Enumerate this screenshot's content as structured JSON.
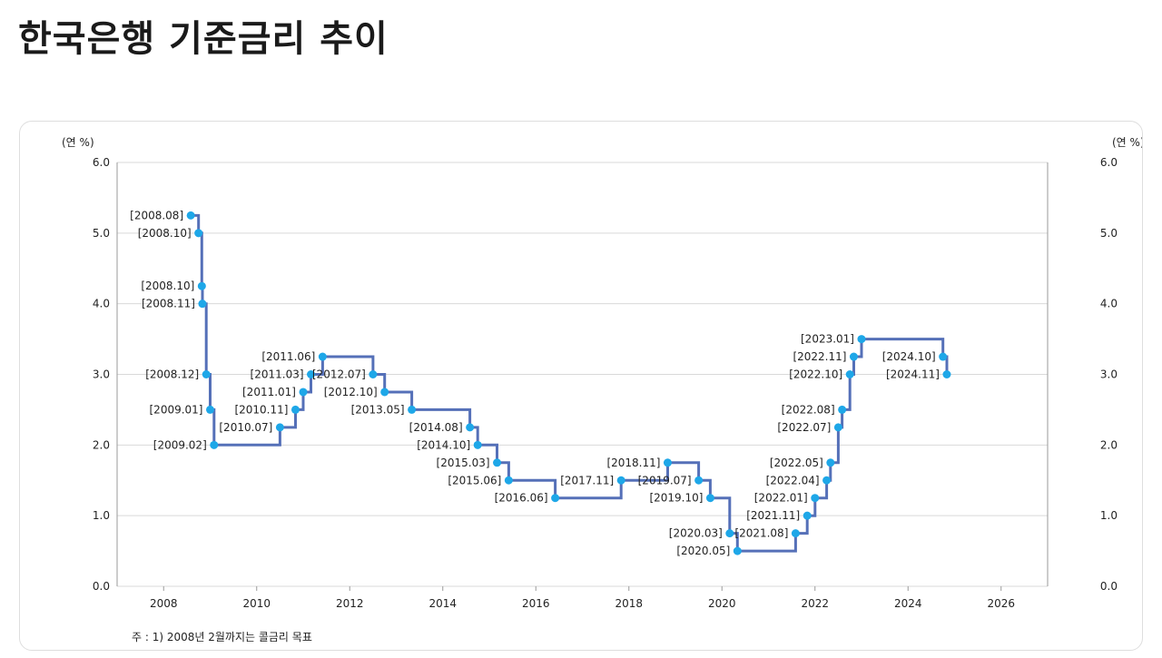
{
  "title": "한국은행 기준금리 추이",
  "footnote": "주 : 1) 2008년 2월까지는 콜금리 목표",
  "colors": {
    "line": "#5570b8",
    "point": "#1ea7e8",
    "grid": "#d9d9d9"
  },
  "chart_data": {
    "type": "line",
    "step": true,
    "unit_left": "(연 %)",
    "unit_right": "(연 %)",
    "xlim": [
      2007,
      2027
    ],
    "ylim": [
      0,
      6
    ],
    "x_ticks": [
      "2008",
      "2010",
      "2012",
      "2014",
      "2016",
      "2018",
      "2020",
      "2022",
      "2024",
      "2026"
    ],
    "y_ticks": [
      "0.0",
      "1.0",
      "2.0",
      "3.0",
      "4.0",
      "5.0",
      "6.0"
    ],
    "grid": true,
    "legend": "none",
    "series": [
      {
        "points": [
          {
            "label": "[2008.08]",
            "x": "2008-08",
            "y": 5.25
          },
          {
            "label": "[2008.10]",
            "x": "2008-10",
            "y": 5.0
          },
          {
            "label": "[2008.10]",
            "x": "2008-10-27",
            "y": 4.25
          },
          {
            "label": "[2008.11]",
            "x": "2008-11",
            "y": 4.0
          },
          {
            "label": "[2008.12]",
            "x": "2008-12",
            "y": 3.0
          },
          {
            "label": "[2009.01]",
            "x": "2009-01",
            "y": 2.5
          },
          {
            "label": "[2009.02]",
            "x": "2009-02",
            "y": 2.0
          },
          {
            "label": "[2010.07]",
            "x": "2010-07",
            "y": 2.25
          },
          {
            "label": "[2010.11]",
            "x": "2010-11",
            "y": 2.5
          },
          {
            "label": "[2011.01]",
            "x": "2011-01",
            "y": 2.75
          },
          {
            "label": "[2011.03]",
            "x": "2011-03",
            "y": 3.0
          },
          {
            "label": "[2011.06]",
            "x": "2011-06",
            "y": 3.25
          },
          {
            "label": "[2012.07]",
            "x": "2012-07",
            "y": 3.0
          },
          {
            "label": "[2012.10]",
            "x": "2012-10",
            "y": 2.75
          },
          {
            "label": "[2013.05]",
            "x": "2013-05",
            "y": 2.5
          },
          {
            "label": "[2014.08]",
            "x": "2014-08",
            "y": 2.25
          },
          {
            "label": "[2014.10]",
            "x": "2014-10",
            "y": 2.0
          },
          {
            "label": "[2015.03]",
            "x": "2015-03",
            "y": 1.75
          },
          {
            "label": "[2015.06]",
            "x": "2015-06",
            "y": 1.5
          },
          {
            "label": "[2016.06]",
            "x": "2016-06",
            "y": 1.25
          },
          {
            "label": "[2017.11]",
            "x": "2017-11",
            "y": 1.5
          },
          {
            "label": "[2018.11]",
            "x": "2018-11",
            "y": 1.75
          },
          {
            "label": "[2019.07]",
            "x": "2019-07",
            "y": 1.5
          },
          {
            "label": "[2019.10]",
            "x": "2019-10",
            "y": 1.25
          },
          {
            "label": "[2020.03]",
            "x": "2020-03",
            "y": 0.75
          },
          {
            "label": "[2020.05]",
            "x": "2020-05",
            "y": 0.5
          },
          {
            "label": "[2021.08]",
            "x": "2021-08",
            "y": 0.75
          },
          {
            "label": "[2021.11]",
            "x": "2021-11",
            "y": 1.0
          },
          {
            "label": "[2022.01]",
            "x": "2022-01",
            "y": 1.25
          },
          {
            "label": "[2022.04]",
            "x": "2022-04",
            "y": 1.5
          },
          {
            "label": "[2022.05]",
            "x": "2022-05",
            "y": 1.75
          },
          {
            "label": "[2022.07]",
            "x": "2022-07",
            "y": 2.25
          },
          {
            "label": "[2022.08]",
            "x": "2022-08",
            "y": 2.5
          },
          {
            "label": "[2022.10]",
            "x": "2022-10",
            "y": 3.0
          },
          {
            "label": "[2022.11]",
            "x": "2022-11",
            "y": 3.25
          },
          {
            "label": "[2023.01]",
            "x": "2023-01",
            "y": 3.5
          },
          {
            "label": "[2024.10]",
            "x": "2024-10",
            "y": 3.25
          },
          {
            "label": "[2024.11]",
            "x": "2024-11",
            "y": 3.0
          }
        ]
      }
    ]
  }
}
